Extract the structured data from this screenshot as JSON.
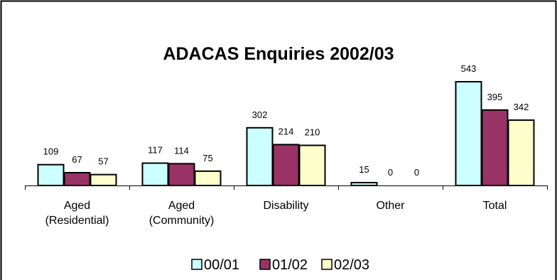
{
  "chart_data": {
    "type": "bar",
    "title": "ADACAS Enquiries 2002/03",
    "xlabel": "",
    "ylabel": "",
    "categories": [
      [
        "Aged",
        "(Residential)"
      ],
      [
        "Aged",
        "(Community)"
      ],
      [
        "Disability"
      ],
      [
        "Other"
      ],
      [
        "Total"
      ]
    ],
    "series": [
      {
        "name": "00/01",
        "values": [
          109,
          117,
          302,
          15,
          543
        ],
        "color": "#CCFFFF"
      },
      {
        "name": "01/02",
        "values": [
          67,
          114,
          214,
          0,
          395
        ],
        "color": "#993366"
      },
      {
        "name": "02/03",
        "values": [
          57,
          75,
          210,
          0,
          342
        ],
        "color": "#FFFFCC"
      }
    ],
    "ylim": [
      0,
      600
    ],
    "grid": false,
    "legend": "bottom"
  }
}
